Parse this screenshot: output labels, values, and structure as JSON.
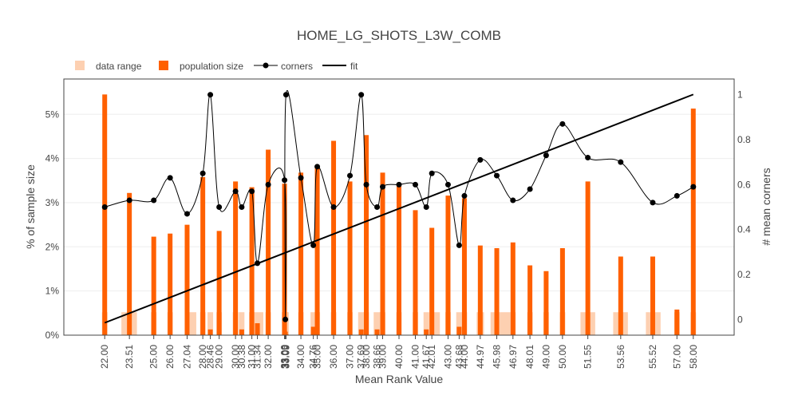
{
  "chart_data": {
    "type": "bar",
    "title": "HOME_LG_SHOTS_L3W_COMB",
    "xlabel": "Mean Rank Value",
    "ylabel": "% of sample size",
    "y2label": "# mean corners",
    "xlim": [
      19.5,
      60.5
    ],
    "ylim": [
      0,
      5.8
    ],
    "y2lim": [
      -0.07,
      1.07
    ],
    "yticks": [
      0,
      1,
      2,
      3,
      4,
      5
    ],
    "ytick_labels": [
      "0%",
      "1%",
      "2%",
      "3%",
      "4%",
      "5%"
    ],
    "y2ticks": [
      0,
      0.2,
      0.4,
      0.6,
      0.8,
      1
    ],
    "y2tick_labels": [
      "0",
      "0.2",
      "0.4",
      "0.6",
      "0.8",
      "1"
    ],
    "grid": true,
    "legend_position": "top-left",
    "x_tick_labels": [
      "22.00",
      "23.51",
      "25.00",
      "26.00",
      "27.04",
      "28.00",
      "28.46",
      "29.00",
      "30.00",
      "30.38",
      "31.00",
      "31.34",
      "32.00",
      "33.00",
      "33.05",
      "33.09",
      "34.00",
      "34.76",
      "35.00",
      "36.00",
      "37.00",
      "37.69",
      "38.00",
      "38.66",
      "39.00",
      "40.00",
      "41.00",
      "41.67",
      "42.01",
      "43.00",
      "43.68",
      "44.00",
      "44.97",
      "45.98",
      "46.97",
      "48.01",
      "49.00",
      "50.00",
      "51.55",
      "53.56",
      "55.52",
      "57.00",
      "58.00"
    ],
    "x_tick_values": [
      22.0,
      23.51,
      25.0,
      26.0,
      27.04,
      28.0,
      28.46,
      29.0,
      30.0,
      30.38,
      31.0,
      31.34,
      32.0,
      33.0,
      33.05,
      33.09,
      34.0,
      34.76,
      35.0,
      36.0,
      37.0,
      37.69,
      38.0,
      38.66,
      39.0,
      40.0,
      41.0,
      41.67,
      42.01,
      43.0,
      43.68,
      44.0,
      44.97,
      45.98,
      46.97,
      48.01,
      49.0,
      50.0,
      51.55,
      53.56,
      55.52,
      57.0,
      58.0
    ],
    "series": [
      {
        "name": "data range",
        "type": "bar",
        "color": "#fdd0b1",
        "bars": [
          {
            "x0": 22.0,
            "x1": 22.0,
            "value": 0.52
          },
          {
            "x0": 23.02,
            "x1": 23.97,
            "value": 0.52
          },
          {
            "x0": 25.0,
            "x1": 25.0,
            "value": 0.52
          },
          {
            "x0": 26.0,
            "x1": 26.0,
            "value": 0.52
          },
          {
            "x0": 27.04,
            "x1": 27.6,
            "value": 0.52
          },
          {
            "x0": 28.0,
            "x1": 28.0,
            "value": 0.52
          },
          {
            "x0": 28.36,
            "x1": 28.56,
            "value": 0.52
          },
          {
            "x0": 29.0,
            "x1": 29.0,
            "value": 0.52
          },
          {
            "x0": 30.0,
            "x1": 30.0,
            "value": 0.52
          },
          {
            "x0": 30.25,
            "x1": 30.5,
            "value": 0.52
          },
          {
            "x0": 31.0,
            "x1": 31.0,
            "value": 0.52
          },
          {
            "x0": 31.05,
            "x1": 31.7,
            "value": 0.52
          },
          {
            "x0": 32.0,
            "x1": 32.0,
            "value": 0.52
          },
          {
            "x0": 33.0,
            "x1": 33.0,
            "value": 0.52
          },
          {
            "x0": 33.05,
            "x1": 33.05,
            "value": 0.52
          },
          {
            "x0": 33.09,
            "x1": 33.09,
            "value": 0.52
          },
          {
            "x0": 34.0,
            "x1": 34.0,
            "value": 0.52
          },
          {
            "x0": 34.6,
            "x1": 34.92,
            "value": 0.52
          },
          {
            "x0": 35.0,
            "x1": 35.0,
            "value": 0.52
          },
          {
            "x0": 36.0,
            "x1": 36.0,
            "value": 0.52
          },
          {
            "x0": 37.0,
            "x1": 37.0,
            "value": 0.52
          },
          {
            "x0": 37.5,
            "x1": 37.88,
            "value": 0.52
          },
          {
            "x0": 38.0,
            "x1": 38.0,
            "value": 0.52
          },
          {
            "x0": 38.45,
            "x1": 38.88,
            "value": 0.52
          },
          {
            "x0": 39.0,
            "x1": 39.0,
            "value": 0.52
          },
          {
            "x0": 40.0,
            "x1": 40.0,
            "value": 0.52
          },
          {
            "x0": 41.0,
            "x1": 41.0,
            "value": 0.52
          },
          {
            "x0": 41.5,
            "x1": 41.85,
            "value": 0.52
          },
          {
            "x0": 42.01,
            "x1": 42.5,
            "value": 0.52
          },
          {
            "x0": 43.0,
            "x1": 43.0,
            "value": 0.52
          },
          {
            "x0": 43.5,
            "x1": 43.85,
            "value": 0.52
          },
          {
            "x0": 44.0,
            "x1": 44.0,
            "value": 0.52
          },
          {
            "x0": 44.75,
            "x1": 45.2,
            "value": 0.52
          },
          {
            "x0": 45.6,
            "x1": 46.8,
            "value": 0.52
          },
          {
            "x0": 46.97,
            "x1": 46.97,
            "value": 0.52
          },
          {
            "x0": 48.01,
            "x1": 48.01,
            "value": 0.52
          },
          {
            "x0": 49.0,
            "x1": 49.0,
            "value": 0.52
          },
          {
            "x0": 50.0,
            "x1": 50.0,
            "value": 0.52
          },
          {
            "x0": 51.1,
            "x1": 52.0,
            "value": 0.52
          },
          {
            "x0": 53.1,
            "x1": 54.0,
            "value": 0.52
          },
          {
            "x0": 55.1,
            "x1": 56.0,
            "value": 0.52
          },
          {
            "x0": 57.0,
            "x1": 57.0,
            "value": 0.52
          },
          {
            "x0": 58.0,
            "x1": 58.0,
            "value": 0.52
          }
        ]
      },
      {
        "name": "population size",
        "type": "bar",
        "color": "#ff6000",
        "values": [
          5.45,
          3.22,
          2.23,
          2.3,
          2.5,
          3.58,
          0.13,
          2.36,
          3.48,
          0.13,
          3.35,
          0.27,
          4.2,
          3.43,
          0.08,
          0.02,
          3.68,
          0.19,
          3.8,
          4.4,
          3.48,
          0.13,
          4.53,
          0.13,
          3.68,
          3.45,
          2.83,
          0.13,
          2.43,
          3.16,
          0.19,
          3.1,
          2.03,
          1.97,
          2.1,
          1.58,
          1.45,
          1.97,
          3.48,
          1.78,
          1.78,
          0.58,
          5.13
        ]
      },
      {
        "name": "corners",
        "type": "line",
        "axis": "y2",
        "color": "#000000",
        "values": [
          0.5,
          0.53,
          0.53,
          0.63,
          0.47,
          0.65,
          1.0,
          0.5,
          0.57,
          0.5,
          0.57,
          0.25,
          0.6,
          0.62,
          0.0,
          1.0,
          0.63,
          0.33,
          0.68,
          0.5,
          0.64,
          1.0,
          0.6,
          0.5,
          0.59,
          0.6,
          0.6,
          0.5,
          0.65,
          0.6,
          0.33,
          0.55,
          0.71,
          0.64,
          0.53,
          0.58,
          0.73,
          0.87,
          0.72,
          0.7,
          0.52,
          0.55,
          0.59
        ]
      },
      {
        "name": "fit",
        "type": "line",
        "color": "#000000",
        "points": [
          [
            22.0,
            0.28
          ],
          [
            58.0,
            5.45
          ]
        ]
      }
    ]
  }
}
